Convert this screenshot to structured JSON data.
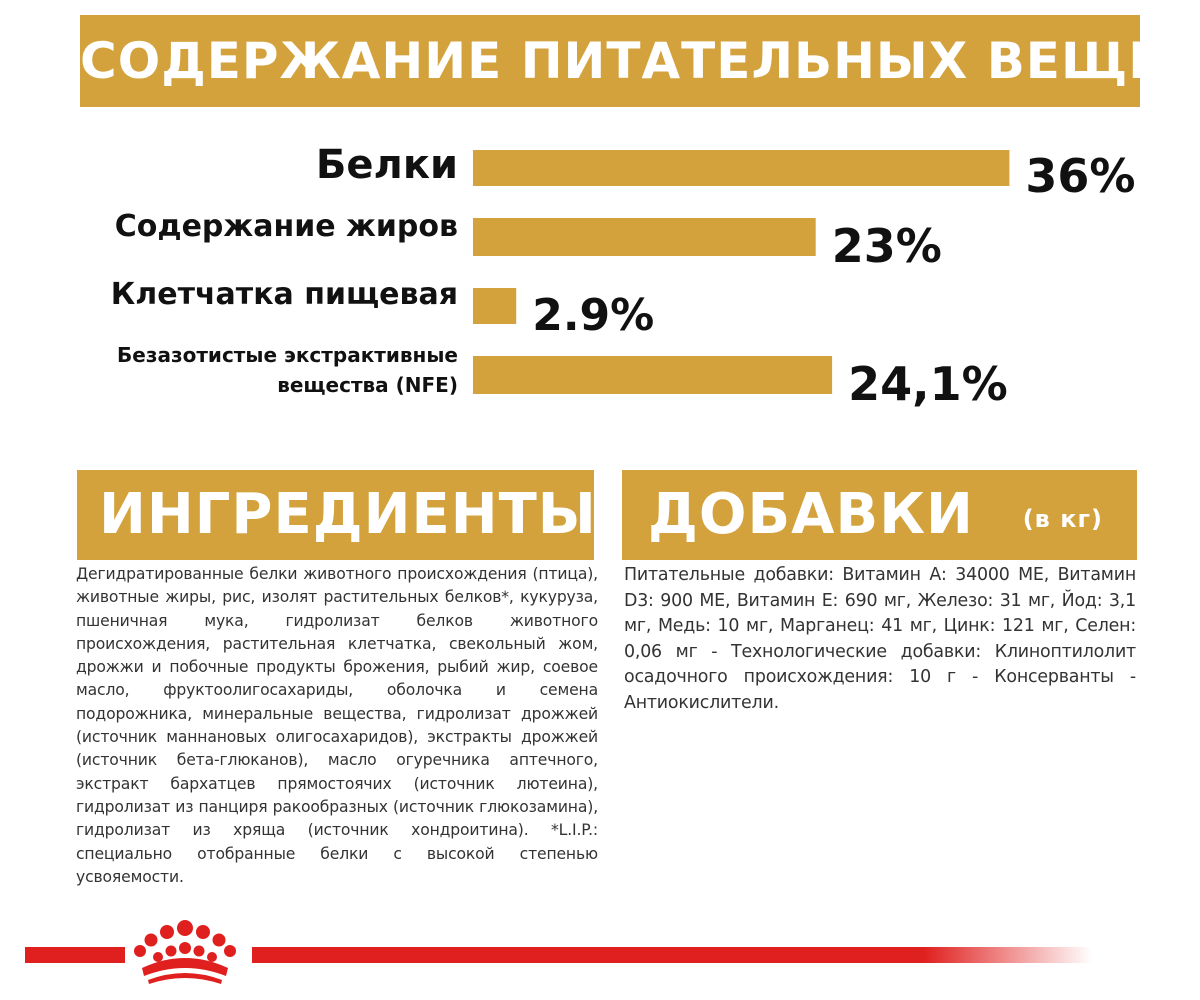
{
  "nutrients": {
    "title": "СОДЕРЖАНИЕ ПИТАТЕЛЬНЫХ ВЕЩЕСТВ"
  },
  "chart_data": {
    "type": "bar",
    "orientation": "horizontal",
    "categories": [
      "Белки",
      "Содержание жиров",
      "Клетчатка пищевая",
      "Безазотистые экстрактивные вещества (NFE)"
    ],
    "category_lines": [
      [
        "Белки"
      ],
      [
        "Содержание жиров"
      ],
      [
        "Клетчатка пищевая"
      ],
      [
        "Безазотистые экстрактивные",
        "вещества (NFE)"
      ]
    ],
    "values": [
      36,
      23,
      2.9,
      24.1
    ],
    "value_labels": [
      "36%",
      "23%",
      "2.9%",
      "24,1%"
    ],
    "xlim": [
      0,
      40
    ],
    "color": "#d4a23c",
    "grid": false,
    "legend": "none"
  },
  "ingredients": {
    "title": "ИНГРЕДИЕНТЫ",
    "text": "Дегидратированные белки животного происхождения (птица), животные жиры, рис, изолят растительных белков*, кукуруза, пшеничная мука, гидролизат белков животного происхождения, растительная клетчатка, свекольный жом, дрожжи и побочные продукты брожения, рыбий жир, соевое масло, фруктоолигосахариды, оболочка и семена подорожника, минеральные вещества, гидролизат дрожжей (источник маннановых олигосахаридов), экстракты дрожжей (источник бета-глюканов), масло огуречника аптечного, экстракт бархатцев прямостоячих (источник лютеина), гидролизат из панциря ракообразных (источник глюкозамина), гидролизат из хряща (источник хондроитина). *L.I.P.: специально отобранные белки с высокой степенью усвояемости."
  },
  "additives": {
    "title": "ДОБАВКИ",
    "unit": "(в кг)",
    "text": "Питательные добавки: Витамин А: 34000 МЕ, Витамин D3: 900 МЕ, Витамин Е: 690 мг, Железо: 31 мг, Йод: 3,1 мг, Медь: 10 мг, Марганец: 41 мг, Цинк: 121 мг, Селен: 0,06 мг - Технологические добавки: Клиноптилолит осадочного происхождения: 10 г - Консерванты - Антиокислители."
  },
  "footer": {
    "logo_icon": "royal-canin-crown-icon",
    "line_color": "#e0201f"
  }
}
